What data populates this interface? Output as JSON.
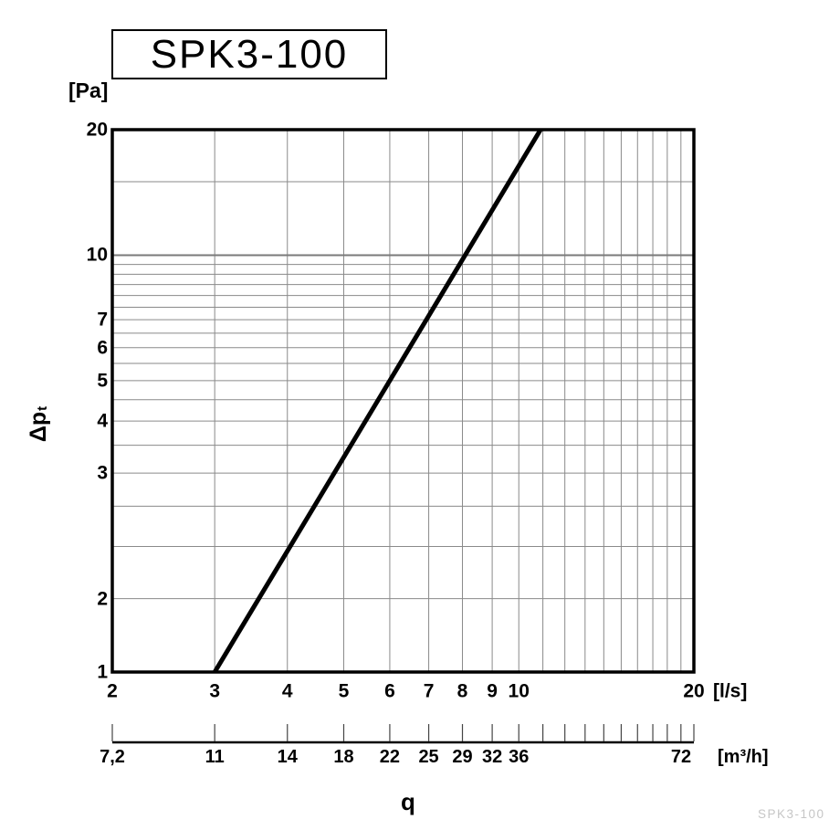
{
  "title_box": {
    "label": "SPK3-100"
  },
  "watermark": "SPK3-100",
  "axes": {
    "y_unit": "[Pa]",
    "y_title_main": "Δp",
    "y_title_sub": "t",
    "x_title": "q",
    "x_unit_primary": "[l/s]",
    "x_unit_secondary": "[m³/h]"
  },
  "colors": {
    "grid": "#8a8a8a",
    "grid_major": "#7a7a7a",
    "frame": "#000000",
    "curve": "#000000",
    "secondary_axis": "#000000",
    "secondary_tick": "#444444",
    "watermark": "#c6c6c6"
  },
  "chart_data": {
    "type": "line",
    "title": "SPK3-100",
    "x_axis": {
      "label": "q",
      "scale": "log",
      "range_ls": [
        2,
        20
      ],
      "unit": "l/s",
      "ticks": [
        {
          "value": 2,
          "label": "2"
        },
        {
          "value": 3,
          "label": "3"
        },
        {
          "value": 4,
          "label": "4"
        },
        {
          "value": 5,
          "label": "5"
        },
        {
          "value": 6,
          "label": "6"
        },
        {
          "value": 7,
          "label": "7"
        },
        {
          "value": 8,
          "label": "8"
        },
        {
          "value": 9,
          "label": "9"
        },
        {
          "value": 10,
          "label": "10"
        },
        {
          "value": 20,
          "label": "20"
        }
      ],
      "gridline_values_ls": [
        3,
        4,
        5,
        6,
        7,
        8,
        9,
        10,
        11,
        12,
        13,
        14,
        15,
        16,
        17,
        18,
        19
      ]
    },
    "y_axis": {
      "label": "Δpt",
      "scale": "log",
      "range_pa": [
        1,
        20
      ],
      "unit": "Pa",
      "ticks": [
        {
          "value": 20,
          "label": "20"
        },
        {
          "value": 10,
          "label": "10"
        },
        {
          "value": 7,
          "label": "7"
        },
        {
          "value": 6,
          "label": "6"
        },
        {
          "value": 5,
          "label": "5"
        },
        {
          "value": 4,
          "label": "4"
        },
        {
          "value": 3,
          "label": "3"
        },
        {
          "value": 2,
          "label": "2",
          "label_at": 1.5
        },
        {
          "value": 1,
          "label": "1"
        }
      ],
      "gridline_values_pa": [
        1.5,
        2,
        2.5,
        3,
        3.5,
        4,
        4.5,
        5,
        5.5,
        6,
        6.5,
        7,
        7.5,
        8,
        8.5,
        9,
        9.5,
        10,
        15
      ],
      "major_gridline_values_pa": [
        10
      ]
    },
    "secondary_scale": {
      "unit": "m³/h",
      "tick_positions_ls": [
        2,
        3,
        4,
        5,
        6,
        7,
        8,
        9,
        10,
        11,
        12,
        13,
        14,
        15,
        16,
        17,
        18,
        19,
        20
      ],
      "labels": [
        {
          "value_m3h": 7.2,
          "label": "7,2"
        },
        {
          "value_m3h": 10.8,
          "label": "11"
        },
        {
          "value_m3h": 14.4,
          "label": "14"
        },
        {
          "value_m3h": 18,
          "label": "18"
        },
        {
          "value_m3h": 21.6,
          "label": "22"
        },
        {
          "value_m3h": 25.2,
          "label": "25"
        },
        {
          "value_m3h": 28.8,
          "label": "29"
        },
        {
          "value_m3h": 32.4,
          "label": "32"
        },
        {
          "value_m3h": 36,
          "label": "36"
        },
        {
          "value_m3h": 72,
          "label": "72",
          "dx": -14
        }
      ]
    },
    "series": [
      {
        "name": "SPK3-100",
        "points": [
          {
            "q_ls": 3,
            "dp_pa": 1
          },
          {
            "q_ls": 10.9,
            "dp_pa": 20
          }
        ]
      }
    ]
  }
}
